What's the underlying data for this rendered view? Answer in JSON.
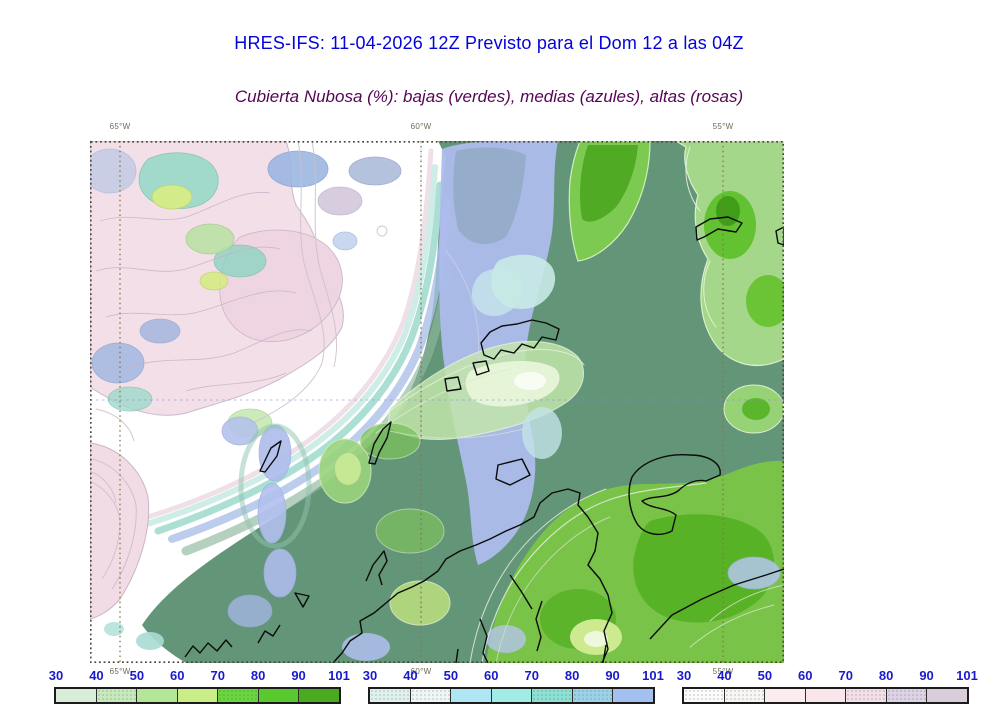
{
  "title": {
    "text": "HRES-IFS: 11-04-2026 12Z Previsto para el Dom 12 a las 04Z",
    "color": "#0404da"
  },
  "subtitle": {
    "text": "Cubierta Nubosa (%): bajas (verdes), medias (azules), altas (rosas)",
    "color": "#560556"
  },
  "map": {
    "top_lon_labels": [
      "65°W",
      "60°W",
      "55°W"
    ],
    "bottom_lon_labels": [
      "65°W",
      "60°W",
      "55°W"
    ],
    "label_color": "#6b6b57"
  },
  "colorbars": {
    "tick_color": "#1a1acd",
    "bars": [
      {
        "name": "low-clouds-greens",
        "tick_labels": [
          "30",
          "40",
          "50",
          "60",
          "70",
          "80",
          "90",
          "101"
        ],
        "cells": [
          {
            "color": "#d8eed8"
          },
          {
            "color": "#c6eabe",
            "speckled": true
          },
          {
            "color": "#b4e698"
          },
          {
            "color": "#c9ee88"
          },
          {
            "color": "#68d63c",
            "speckled": true
          },
          {
            "color": "#58ca30"
          },
          {
            "color": "#4aaa20"
          }
        ]
      },
      {
        "name": "mid-clouds-blues",
        "tick_labels": [
          "30",
          "40",
          "50",
          "60",
          "70",
          "80",
          "90",
          "101"
        ],
        "cells": [
          {
            "color": "#dff1ef",
            "speckled": true
          },
          {
            "color": "#eef6f8",
            "speckled": true
          },
          {
            "color": "#aee6f4"
          },
          {
            "color": "#a2ece6"
          },
          {
            "color": "#8ce0d4",
            "speckled": true
          },
          {
            "color": "#9cd2e8",
            "speckled": true
          },
          {
            "color": "#a4c0f0"
          }
        ]
      },
      {
        "name": "high-clouds-pinks",
        "tick_labels": [
          "30",
          "40",
          "50",
          "60",
          "70",
          "80",
          "90",
          "101"
        ],
        "cells": [
          {
            "color": "#fdfbfb",
            "speckled": true
          },
          {
            "color": "#faf5f5",
            "speckled": true
          },
          {
            "color": "#fbeded"
          },
          {
            "color": "#f8e6ea"
          },
          {
            "color": "#f2dfe9",
            "speckled": true
          },
          {
            "color": "#ded2e6",
            "speckled": true
          },
          {
            "color": "#d9cdda"
          }
        ]
      }
    ]
  },
  "chart_data": {
    "type": "heatmap",
    "title": "HRES-IFS: 11-04-2026 12Z Previsto para el Dom 12 a las 04Z",
    "subtitle": "Cubierta Nubosa (%): bajas (verdes), medias (azules), altas (rosas)",
    "x_ticks": [
      "65°W",
      "60°W",
      "55°W"
    ],
    "grid": "dotted lon gridlines at 65W, 60W, 55W; one dashed horizontal gridline mid-map",
    "overlay": "black coastlines of islands and mainland coast",
    "legend_position": "bottom",
    "series": [
      {
        "name": "cubierta nubosa baja (verdes)",
        "units": "%",
        "scale_ticks": [
          30,
          40,
          50,
          60,
          70,
          80,
          90,
          101
        ],
        "colors": [
          "#d8eed8",
          "#c6eabe",
          "#b4e698",
          "#c9ee88",
          "#68d63c",
          "#58ca30",
          "#4aaa20"
        ]
      },
      {
        "name": "cubierta nubosa media (azules)",
        "units": "%",
        "scale_ticks": [
          30,
          40,
          50,
          60,
          70,
          80,
          90,
          101
        ],
        "colors": [
          "#dff1ef",
          "#eef6f8",
          "#aee6f4",
          "#a2ece6",
          "#8ce0d4",
          "#9cd2e8",
          "#a4c0f0"
        ]
      },
      {
        "name": "cubierta nubosa alta (rosas)",
        "units": "%",
        "scale_ticks": [
          30,
          40,
          50,
          60,
          70,
          80,
          90,
          101
        ],
        "colors": [
          "#fdfbfb",
          "#faf5f5",
          "#fbeded",
          "#f8e6ea",
          "#f2dfe9",
          "#ded2e6",
          "#d9cdda"
        ]
      }
    ]
  }
}
